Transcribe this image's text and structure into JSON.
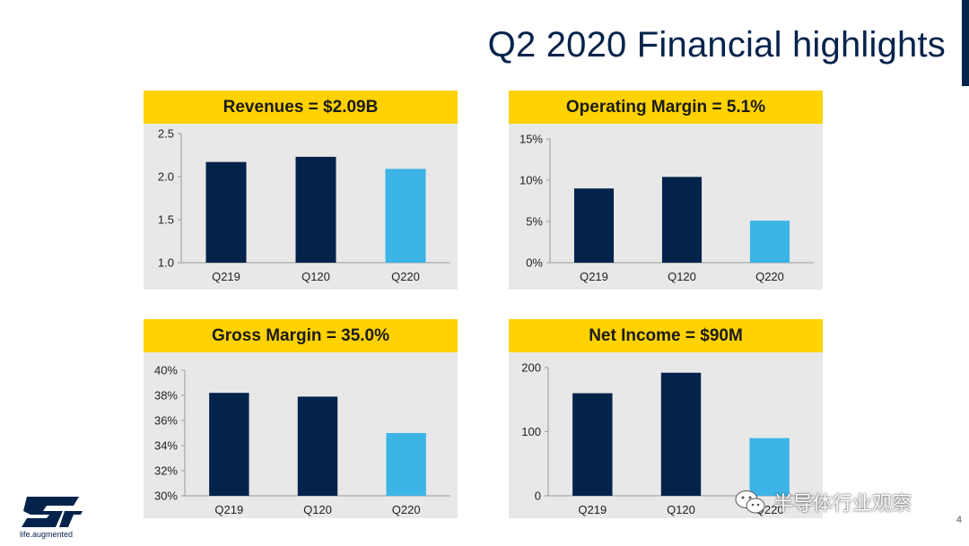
{
  "slide": {
    "title": "Q2 2020 Financial highlights",
    "page_number": "4",
    "logo_tagline": "life.augmented",
    "watermark_text": "半导体行业观察"
  },
  "colors": {
    "title": "#03234b",
    "header_bg": "#ffd200",
    "panel_bg": "#e8e8e8",
    "bar_dark": "#03234b",
    "bar_light": "#3cb4e6"
  },
  "chart_data": [
    {
      "type": "bar",
      "title": "Revenues = $2.09B",
      "categories": [
        "Q219",
        "Q120",
        "Q220"
      ],
      "values": [
        2.17,
        2.23,
        2.09
      ],
      "ylim": [
        1.0,
        2.5
      ],
      "yticks": [
        "1.0",
        "1.5",
        "2.0",
        "2.5"
      ],
      "ytick_values": [
        1.0,
        1.5,
        2.0,
        2.5
      ],
      "bar_colors": [
        "#03234b",
        "#03234b",
        "#3cb4e6"
      ],
      "xlabel": "",
      "ylabel": ""
    },
    {
      "type": "bar",
      "title": "Operating Margin = 5.1%",
      "categories": [
        "Q219",
        "Q120",
        "Q220"
      ],
      "values": [
        9.0,
        10.4,
        5.1
      ],
      "ylim": [
        0,
        15
      ],
      "yticks": [
        "0%",
        "5%",
        "10%",
        "15%"
      ],
      "ytick_values": [
        0,
        5,
        10,
        15
      ],
      "bar_colors": [
        "#03234b",
        "#03234b",
        "#3cb4e6"
      ],
      "xlabel": "",
      "ylabel": ""
    },
    {
      "type": "bar",
      "title": "Gross Margin = 35.0%",
      "categories": [
        "Q219",
        "Q120",
        "Q220"
      ],
      "values": [
        38.2,
        37.9,
        35.0
      ],
      "ylim": [
        30,
        40
      ],
      "yticks": [
        "30%",
        "32%",
        "34%",
        "36%",
        "38%",
        "40%"
      ],
      "ytick_values": [
        30,
        32,
        34,
        36,
        38,
        40
      ],
      "bar_colors": [
        "#03234b",
        "#03234b",
        "#3cb4e6"
      ],
      "xlabel": "",
      "ylabel": ""
    },
    {
      "type": "bar",
      "title": "Net Income = $90M",
      "categories": [
        "Q219",
        "Q120",
        "Q220"
      ],
      "values": [
        160,
        192,
        90
      ],
      "ylim": [
        0,
        200
      ],
      "yticks": [
        "0",
        "100",
        "200"
      ],
      "ytick_values": [
        0,
        100,
        200
      ],
      "bar_colors": [
        "#03234b",
        "#03234b",
        "#3cb4e6"
      ],
      "xlabel": "",
      "ylabel": ""
    }
  ]
}
